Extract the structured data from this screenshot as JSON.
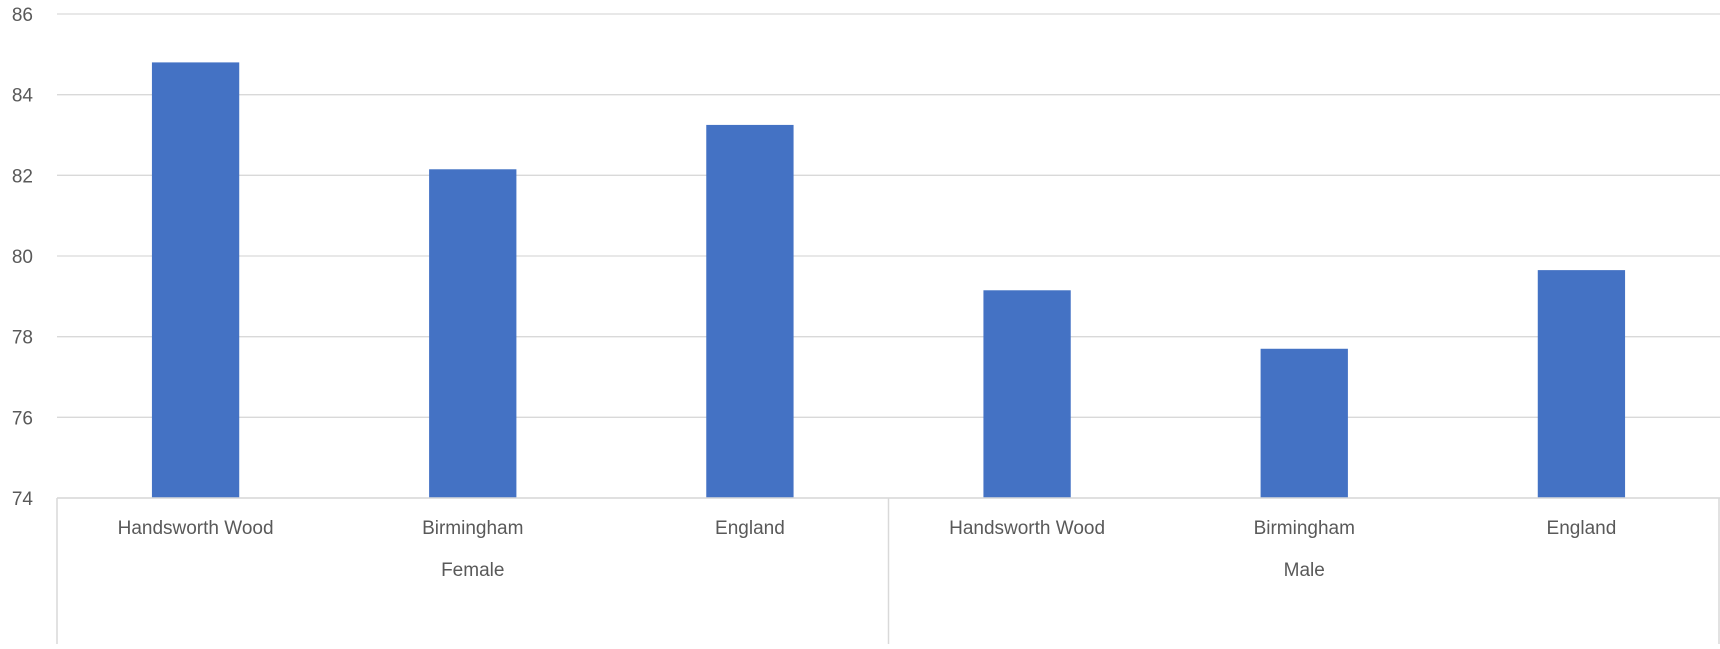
{
  "chart_data": {
    "type": "bar",
    "title": "",
    "xlabel": "",
    "ylabel": "",
    "ylim": [
      74,
      86
    ],
    "yticks": [
      74,
      76,
      78,
      80,
      82,
      84,
      86
    ],
    "grid": true,
    "legend": "none",
    "groups": [
      {
        "name": "Female",
        "categories": [
          "Handsworth Wood",
          "Birmingham",
          "England"
        ],
        "values": [
          84.8,
          82.15,
          83.25
        ]
      },
      {
        "name": "Male",
        "categories": [
          "Handsworth Wood",
          "Birmingham",
          "England"
        ],
        "values": [
          79.15,
          77.7,
          79.65
        ]
      }
    ],
    "colors": {
      "bar": "#4472c4",
      "grid": "#d9d9d9",
      "axis": "#d9d9d9",
      "text": "#595959"
    }
  }
}
